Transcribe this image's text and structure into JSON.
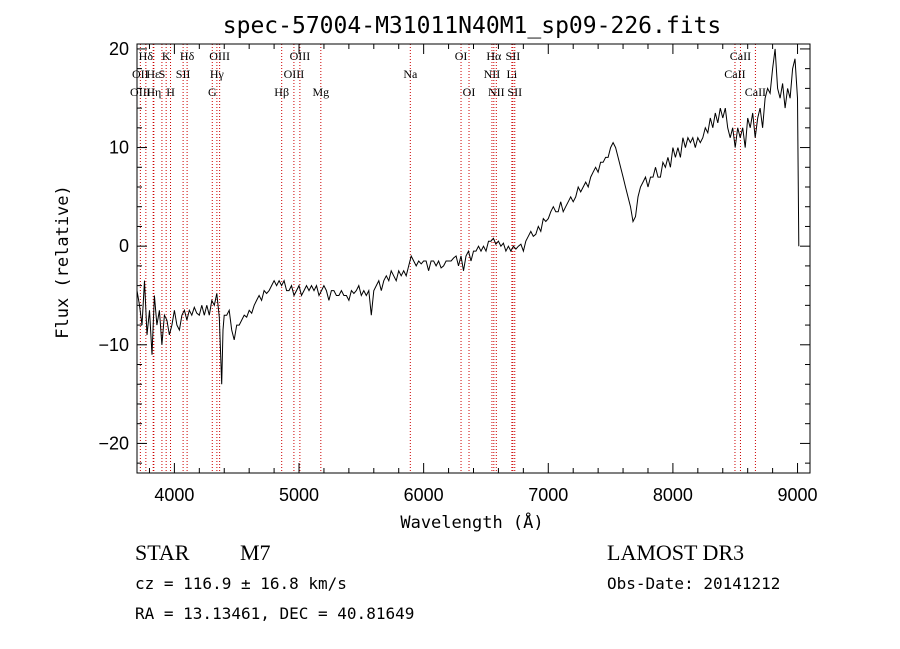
{
  "chart_data": {
    "type": "line",
    "title": "spec-57004-M31011N40M1_sp09-226.fits",
    "xlabel": "Wavelength (Å)",
    "ylabel": "Flux (relative)",
    "xlim": [
      3700,
      9100
    ],
    "ylim": [
      -23,
      20.5
    ],
    "xticks": [
      4000,
      5000,
      6000,
      7000,
      8000,
      9000
    ],
    "yticks": [
      -20,
      -10,
      0,
      10,
      20
    ],
    "grid": false,
    "series": [
      {
        "points": [
          [
            3700,
            -4.5
          ],
          [
            3720,
            -6
          ],
          [
            3740,
            -8
          ],
          [
            3760,
            -3.5
          ],
          [
            3780,
            -9
          ],
          [
            3800,
            -6.5
          ],
          [
            3820,
            -11
          ],
          [
            3840,
            -5
          ],
          [
            3860,
            -8
          ],
          [
            3880,
            -6.5
          ],
          [
            3900,
            -10
          ],
          [
            3920,
            -7
          ],
          [
            3940,
            -7.5
          ],
          [
            3960,
            -9
          ],
          [
            3980,
            -8
          ],
          [
            4000,
            -6.5
          ],
          [
            4020,
            -8
          ],
          [
            4040,
            -8.5
          ],
          [
            4060,
            -7
          ],
          [
            4080,
            -6.5
          ],
          [
            4100,
            -7.5
          ],
          [
            4120,
            -6.5
          ],
          [
            4140,
            -7
          ],
          [
            4160,
            -6.2
          ],
          [
            4180,
            -6.8
          ],
          [
            4200,
            -7
          ],
          [
            4220,
            -6
          ],
          [
            4240,
            -7
          ],
          [
            4260,
            -6
          ],
          [
            4280,
            -7
          ],
          [
            4300,
            -5.5
          ],
          [
            4320,
            -6
          ],
          [
            4340,
            -4.8
          ],
          [
            4360,
            -7.2
          ],
          [
            4380,
            -14
          ],
          [
            4390,
            -8.5
          ],
          [
            4400,
            -7
          ],
          [
            4420,
            -7
          ],
          [
            4440,
            -6.5
          ],
          [
            4460,
            -8.5
          ],
          [
            4480,
            -9.5
          ],
          [
            4500,
            -8
          ],
          [
            4520,
            -8
          ],
          [
            4540,
            -7.5
          ],
          [
            4560,
            -7
          ],
          [
            4580,
            -7.2
          ],
          [
            4600,
            -6.5
          ],
          [
            4620,
            -6.8
          ],
          [
            4640,
            -6
          ],
          [
            4660,
            -5.5
          ],
          [
            4680,
            -5
          ],
          [
            4700,
            -5.5
          ],
          [
            4720,
            -4.5
          ],
          [
            4740,
            -4.8
          ],
          [
            4760,
            -4.5
          ],
          [
            4780,
            -4
          ],
          [
            4800,
            -3.5
          ],
          [
            4820,
            -4
          ],
          [
            4840,
            -3.5
          ],
          [
            4860,
            -4
          ],
          [
            4880,
            -3.5
          ],
          [
            4900,
            -4.5
          ],
          [
            4920,
            -4.5
          ],
          [
            4940,
            -4
          ],
          [
            4960,
            -5
          ],
          [
            4980,
            -4.5
          ],
          [
            5000,
            -4
          ],
          [
            5020,
            -5
          ],
          [
            5040,
            -4.5
          ],
          [
            5060,
            -4
          ],
          [
            5080,
            -4.5
          ],
          [
            5100,
            -4
          ],
          [
            5120,
            -4.5
          ],
          [
            5140,
            -4
          ],
          [
            5160,
            -5
          ],
          [
            5180,
            -4.5
          ],
          [
            5200,
            -4
          ],
          [
            5220,
            -4.5
          ],
          [
            5240,
            -5.5
          ],
          [
            5260,
            -4.5
          ],
          [
            5280,
            -4.5
          ],
          [
            5300,
            -5
          ],
          [
            5320,
            -5
          ],
          [
            5340,
            -4.5
          ],
          [
            5360,
            -5
          ],
          [
            5380,
            -5
          ],
          [
            5400,
            -5.5
          ],
          [
            5420,
            -4.5
          ],
          [
            5440,
            -4.8
          ],
          [
            5460,
            -4.5
          ],
          [
            5480,
            -4
          ],
          [
            5500,
            -5
          ],
          [
            5520,
            -4.5
          ],
          [
            5540,
            -5
          ],
          [
            5560,
            -4.5
          ],
          [
            5580,
            -7
          ],
          [
            5600,
            -4.5
          ],
          [
            5620,
            -4
          ],
          [
            5640,
            -3.5
          ],
          [
            5660,
            -4.5
          ],
          [
            5680,
            -3.5
          ],
          [
            5700,
            -3
          ],
          [
            5720,
            -3.5
          ],
          [
            5740,
            -2.5
          ],
          [
            5760,
            -3
          ],
          [
            5780,
            -3.5
          ],
          [
            5800,
            -2.5
          ],
          [
            5820,
            -3
          ],
          [
            5840,
            -2.5
          ],
          [
            5860,
            -3
          ],
          [
            5880,
            -2
          ],
          [
            5900,
            -1
          ],
          [
            5920,
            -1.5
          ],
          [
            5940,
            -2
          ],
          [
            5960,
            -1.5
          ],
          [
            5980,
            -1.8
          ],
          [
            6000,
            -1.5
          ],
          [
            6020,
            -1.5
          ],
          [
            6040,
            -2.5
          ],
          [
            6060,
            -1.5
          ],
          [
            6080,
            -1.5
          ],
          [
            6100,
            -2
          ],
          [
            6120,
            -1.5
          ],
          [
            6140,
            -2.2
          ],
          [
            6160,
            -2
          ],
          [
            6180,
            -1.5
          ],
          [
            6200,
            -1.5
          ],
          [
            6220,
            -1.5
          ],
          [
            6240,
            -1.2
          ],
          [
            6260,
            -1
          ],
          [
            6280,
            -2
          ],
          [
            6300,
            -1
          ],
          [
            6320,
            -2.5
          ],
          [
            6340,
            -1
          ],
          [
            6360,
            -0.5
          ],
          [
            6380,
            -1.5
          ],
          [
            6400,
            -0.5
          ],
          [
            6420,
            -0.5
          ],
          [
            6440,
            0
          ],
          [
            6460,
            -0.5
          ],
          [
            6480,
            0
          ],
          [
            6500,
            -0.5
          ],
          [
            6520,
            0.5
          ],
          [
            6540,
            0.5
          ],
          [
            6560,
            0.8
          ],
          [
            6580,
            0.2
          ],
          [
            6600,
            0.5
          ],
          [
            6620,
            0
          ],
          [
            6640,
            0.3
          ],
          [
            6660,
            -0.5
          ],
          [
            6680,
            0
          ],
          [
            6700,
            -0.5
          ],
          [
            6720,
            0
          ],
          [
            6740,
            -0.3
          ],
          [
            6760,
            0
          ],
          [
            6780,
            0.2
          ],
          [
            6800,
            -0.5
          ],
          [
            6820,
            0.5
          ],
          [
            6840,
            1
          ],
          [
            6860,
            1.5
          ],
          [
            6880,
            1
          ],
          [
            6900,
            1.2
          ],
          [
            6920,
            2
          ],
          [
            6940,
            1.5
          ],
          [
            6960,
            2.8
          ],
          [
            6980,
            2.5
          ],
          [
            7000,
            2.8
          ],
          [
            7020,
            3.5
          ],
          [
            7040,
            4
          ],
          [
            7060,
            3.5
          ],
          [
            7080,
            3.5
          ],
          [
            7100,
            4.5
          ],
          [
            7120,
            3.5
          ],
          [
            7140,
            4
          ],
          [
            7160,
            4.5
          ],
          [
            7180,
            5
          ],
          [
            7200,
            4.5
          ],
          [
            7220,
            5
          ],
          [
            7240,
            6
          ],
          [
            7260,
            5.5
          ],
          [
            7280,
            6
          ],
          [
            7300,
            6.5
          ],
          [
            7320,
            6
          ],
          [
            7340,
            7
          ],
          [
            7360,
            7.5
          ],
          [
            7380,
            8
          ],
          [
            7400,
            7.5
          ],
          [
            7420,
            8.5
          ],
          [
            7440,
            8.5
          ],
          [
            7460,
            9
          ],
          [
            7480,
            9
          ],
          [
            7500,
            10
          ],
          [
            7520,
            10.5
          ],
          [
            7540,
            10
          ],
          [
            7560,
            9
          ],
          [
            7580,
            8
          ],
          [
            7600,
            7
          ],
          [
            7620,
            6
          ],
          [
            7640,
            5
          ],
          [
            7660,
            4
          ],
          [
            7680,
            2.5
          ],
          [
            7700,
            3
          ],
          [
            7720,
            5
          ],
          [
            7740,
            6
          ],
          [
            7760,
            6.5
          ],
          [
            7780,
            7
          ],
          [
            7800,
            6
          ],
          [
            7820,
            7
          ],
          [
            7840,
            7
          ],
          [
            7860,
            8
          ],
          [
            7880,
            7
          ],
          [
            7900,
            7
          ],
          [
            7920,
            8.5
          ],
          [
            7940,
            8
          ],
          [
            7960,
            9
          ],
          [
            7980,
            8
          ],
          [
            8000,
            10
          ],
          [
            8020,
            9
          ],
          [
            8040,
            10
          ],
          [
            8060,
            9
          ],
          [
            8080,
            11
          ],
          [
            8100,
            10
          ],
          [
            8120,
            11
          ],
          [
            8140,
            10.5
          ],
          [
            8160,
            11
          ],
          [
            8180,
            10
          ],
          [
            8200,
            11
          ],
          [
            8220,
            10.5
          ],
          [
            8240,
            11
          ],
          [
            8260,
            12
          ],
          [
            8280,
            11.5
          ],
          [
            8300,
            13
          ],
          [
            8320,
            12
          ],
          [
            8340,
            13.5
          ],
          [
            8360,
            12.5
          ],
          [
            8380,
            14
          ],
          [
            8400,
            13
          ],
          [
            8420,
            14
          ],
          [
            8440,
            12
          ],
          [
            8460,
            11
          ],
          [
            8480,
            12
          ],
          [
            8500,
            10
          ],
          [
            8520,
            12
          ],
          [
            8540,
            11
          ],
          [
            8560,
            12
          ],
          [
            8580,
            10
          ],
          [
            8600,
            13
          ],
          [
            8620,
            12
          ],
          [
            8640,
            13.5
          ],
          [
            8660,
            11
          ],
          [
            8680,
            13
          ],
          [
            8700,
            14
          ],
          [
            8720,
            12
          ],
          [
            8740,
            15
          ],
          [
            8760,
            16
          ],
          [
            8780,
            15.5
          ],
          [
            8800,
            18
          ],
          [
            8820,
            20
          ],
          [
            8840,
            16
          ],
          [
            8860,
            15
          ],
          [
            8880,
            16.5
          ],
          [
            8900,
            14
          ],
          [
            8920,
            16
          ],
          [
            8940,
            15
          ],
          [
            8960,
            18
          ],
          [
            8980,
            19
          ],
          [
            9000,
            15
          ],
          [
            9010,
            0
          ]
        ]
      }
    ],
    "lines": [
      {
        "label": "Hδ",
        "x": 3771,
        "row": 1
      },
      {
        "label": "OII",
        "x": 3727,
        "row": 2
      },
      {
        "label": "OIII",
        "x": 3727,
        "row": 3
      },
      {
        "label": "Hε",
        "x": 3830,
        "row": 2
      },
      {
        "label": "Hη",
        "x": 3835,
        "row": 3
      },
      {
        "label": "K",
        "x": 3934,
        "row": 1
      },
      {
        "label": "S",
        "x": 3900,
        "row": 2
      },
      {
        "label": "H",
        "x": 3969,
        "row": 3
      },
      {
        "label": "Hδ",
        "x": 4102,
        "row": 1
      },
      {
        "label": "SII",
        "x": 4070,
        "row": 2
      },
      {
        "label": "OIII",
        "x": 4363,
        "row": 1
      },
      {
        "label": "Hγ",
        "x": 4341,
        "row": 2
      },
      {
        "label": "G",
        "x": 4304,
        "row": 3
      },
      {
        "label": "Hβ",
        "x": 4861,
        "row": 3
      },
      {
        "label": "OIII",
        "x": 5007,
        "row": 1
      },
      {
        "label": "OIII",
        "x": 4959,
        "row": 2
      },
      {
        "label": "Mg",
        "x": 5175,
        "row": 3
      },
      {
        "label": "Na",
        "x": 5893,
        "row": 2
      },
      {
        "label": "OI",
        "x": 6300,
        "row": 1
      },
      {
        "label": "OI",
        "x": 6364,
        "row": 3
      },
      {
        "label": "Hα",
        "x": 6563,
        "row": 1
      },
      {
        "label": "NII",
        "x": 6548,
        "row": 2
      },
      {
        "label": "NII",
        "x": 6583,
        "row": 3
      },
      {
        "label": "SII",
        "x": 6716,
        "row": 1
      },
      {
        "label": "Li",
        "x": 6708,
        "row": 2
      },
      {
        "label": "SII",
        "x": 6731,
        "row": 3
      },
      {
        "label": "CaII",
        "x": 8542,
        "row": 1
      },
      {
        "label": "CaII",
        "x": 8498,
        "row": 2
      },
      {
        "label": "CaII",
        "x": 8662,
        "row": 3
      }
    ]
  },
  "info": {
    "object_class": "STAR",
    "subclass": "M7",
    "survey": "LAMOST DR3",
    "redshift": "cz = 116.9 ± 16.8 km/s",
    "obs_date": "Obs-Date: 20141212",
    "coords": "RA =  13.13461, DEC =  40.81649"
  }
}
